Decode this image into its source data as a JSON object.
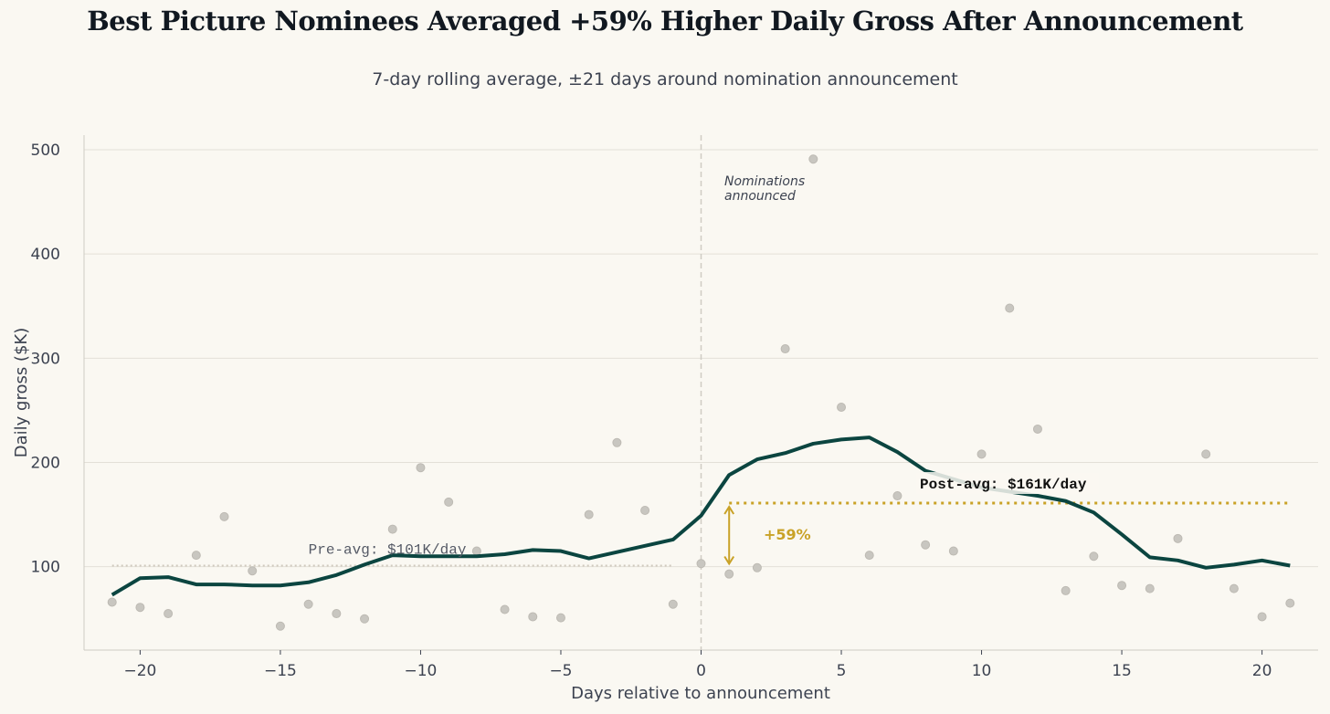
{
  "chart_data": {
    "type": "line",
    "title": "Best Picture Nominees Averaged +59% Higher Daily Gross After Announcement",
    "subtitle": "7-day rolling average, ±21 days around nomination announcement",
    "xlabel": "Days relative to announcement",
    "ylabel": "Daily gross ($K)",
    "xlim": [
      -22,
      22
    ],
    "ylim": [
      20,
      514
    ],
    "xticks": [
      -20,
      -15,
      -10,
      -5,
      0,
      5,
      10,
      15,
      20
    ],
    "xtick_labels": [
      "−20",
      "−15",
      "−10",
      "−5",
      "0",
      "5",
      "10",
      "15",
      "20"
    ],
    "yticks": [
      100,
      200,
      300,
      400,
      500
    ],
    "grid": "horizontal",
    "x": [
      -21,
      -20,
      -19,
      -18,
      -17,
      -16,
      -15,
      -14,
      -13,
      -12,
      -11,
      -10,
      -9,
      -8,
      -7,
      -6,
      -5,
      -4,
      -3,
      -2,
      -1,
      0,
      1,
      2,
      3,
      4,
      5,
      6,
      7,
      8,
      9,
      10,
      11,
      12,
      13,
      14,
      15,
      16,
      17,
      18,
      19,
      20,
      21
    ],
    "series": [
      {
        "kind": "scatter",
        "color": "#c8c6c0",
        "values": [
          66,
          61,
          55,
          111,
          148,
          96,
          43,
          64,
          55,
          50,
          136,
          195,
          162,
          115,
          59,
          52,
          51,
          150,
          219,
          154,
          64,
          103,
          93,
          99,
          309,
          491,
          253,
          111,
          168,
          121,
          115,
          208,
          348,
          232,
          77,
          110,
          82,
          79,
          127,
          208,
          79,
          52,
          65
        ]
      },
      {
        "kind": "line",
        "color": "#0b4540",
        "values": [
          73,
          89,
          90,
          83,
          83,
          82,
          82,
          85,
          92,
          102,
          111,
          110,
          110,
          110,
          112,
          116,
          115,
          108,
          114,
          120,
          126,
          149,
          188,
          203,
          209,
          218,
          222,
          224,
          210,
          192,
          184,
          176,
          172,
          168,
          163,
          152,
          131,
          109,
          106,
          99,
          102,
          106,
          101
        ]
      }
    ],
    "annotations": {
      "event": {
        "x": 0,
        "label_line1": "Nominations",
        "label_line2": "announced"
      },
      "pre_avg": {
        "value": 101,
        "x_range": [
          -21,
          -1
        ],
        "label": "Pre-avg: $101K/day",
        "color": "#cfc9bd"
      },
      "post_avg": {
        "value": 161,
        "x_range": [
          1,
          21
        ],
        "label": "Post-avg: $161K/day",
        "color": "#c9a227"
      },
      "change": {
        "label": "+59%",
        "color": "#c9a227"
      }
    }
  }
}
